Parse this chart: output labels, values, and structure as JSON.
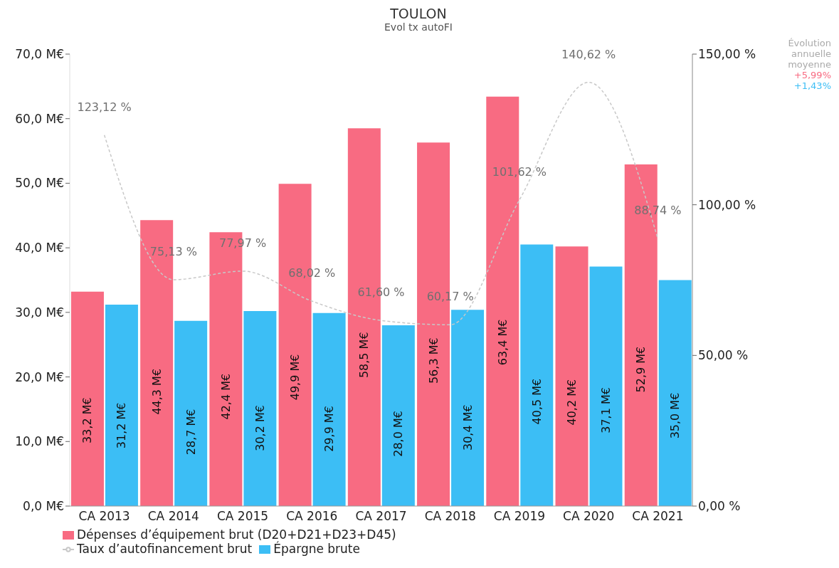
{
  "chart_data": {
    "type": "bar",
    "title": "TOULON",
    "subtitle": "Evol tx autoFI",
    "categories": [
      "CA 2013",
      "CA 2014",
      "CA 2015",
      "CA 2016",
      "CA 2017",
      "CA 2018",
      "CA 2019",
      "CA 2020",
      "CA 2021"
    ],
    "series": [
      {
        "name": "Dépenses d’équipement brut (D20+D21+D23+D45)",
        "color": "#f86b82",
        "values": [
          33.2,
          44.3,
          42.4,
          49.9,
          58.5,
          56.3,
          63.4,
          40.2,
          52.9
        ],
        "value_labels": [
          "33,2 M€",
          "44,3 M€",
          "42,4 M€",
          "49,9 M€",
          "58,5 M€",
          "56,3 M€",
          "63,4 M€",
          "40,2 M€",
          "52,9 M€"
        ]
      },
      {
        "name": "Épargne brute",
        "color": "#3cbef5",
        "values": [
          31.2,
          28.7,
          30.2,
          29.9,
          28.0,
          30.4,
          40.5,
          37.1,
          35.0
        ],
        "value_labels": [
          "31,2 M€",
          "28,7 M€",
          "30,2 M€",
          "29,9 M€",
          "28,0 M€",
          "30,4 M€",
          "40,5 M€",
          "37,1 M€",
          "35,0 M€"
        ]
      },
      {
        "name": "Taux d’autofinancement brut",
        "type": "line",
        "axis": "y2",
        "color": "#c8c8c8",
        "line_style": "dashed",
        "marker": "none",
        "values": [
          123.12,
          75.13,
          77.97,
          68.02,
          61.6,
          60.17,
          101.62,
          140.62,
          88.74
        ],
        "value_labels": [
          "123,12 %",
          "75,13 %",
          "77,97 %",
          "68,02 %",
          "61,60 %",
          "60,17 %",
          "101,62 %",
          "140,62 %",
          "88,74 %"
        ]
      }
    ],
    "ylim": [
      0,
      70
    ],
    "yticks": [
      {
        "value": 0,
        "label": "0,0 M€"
      },
      {
        "value": 10,
        "label": "10,0 M€"
      },
      {
        "value": 20,
        "label": "20,0 M€"
      },
      {
        "value": 30,
        "label": "30,0 M€"
      },
      {
        "value": 40,
        "label": "40,0 M€"
      },
      {
        "value": 50,
        "label": "50,0 M€"
      },
      {
        "value": 60,
        "label": "60,0 M€"
      },
      {
        "value": 70,
        "label": "70,0 M€"
      }
    ],
    "y2lim": [
      0,
      150
    ],
    "y2ticks": [
      {
        "value": 0,
        "label": "0,00 %"
      },
      {
        "value": 50,
        "label": "50,00 %"
      },
      {
        "value": 100,
        "label": "100,00 %"
      },
      {
        "value": 150,
        "label": "150,00 %"
      }
    ],
    "annotations": [
      "Évolution annuelle moyenne",
      "+5,99%",
      "+1,43%"
    ],
    "grid": false,
    "legend": "bottom"
  }
}
